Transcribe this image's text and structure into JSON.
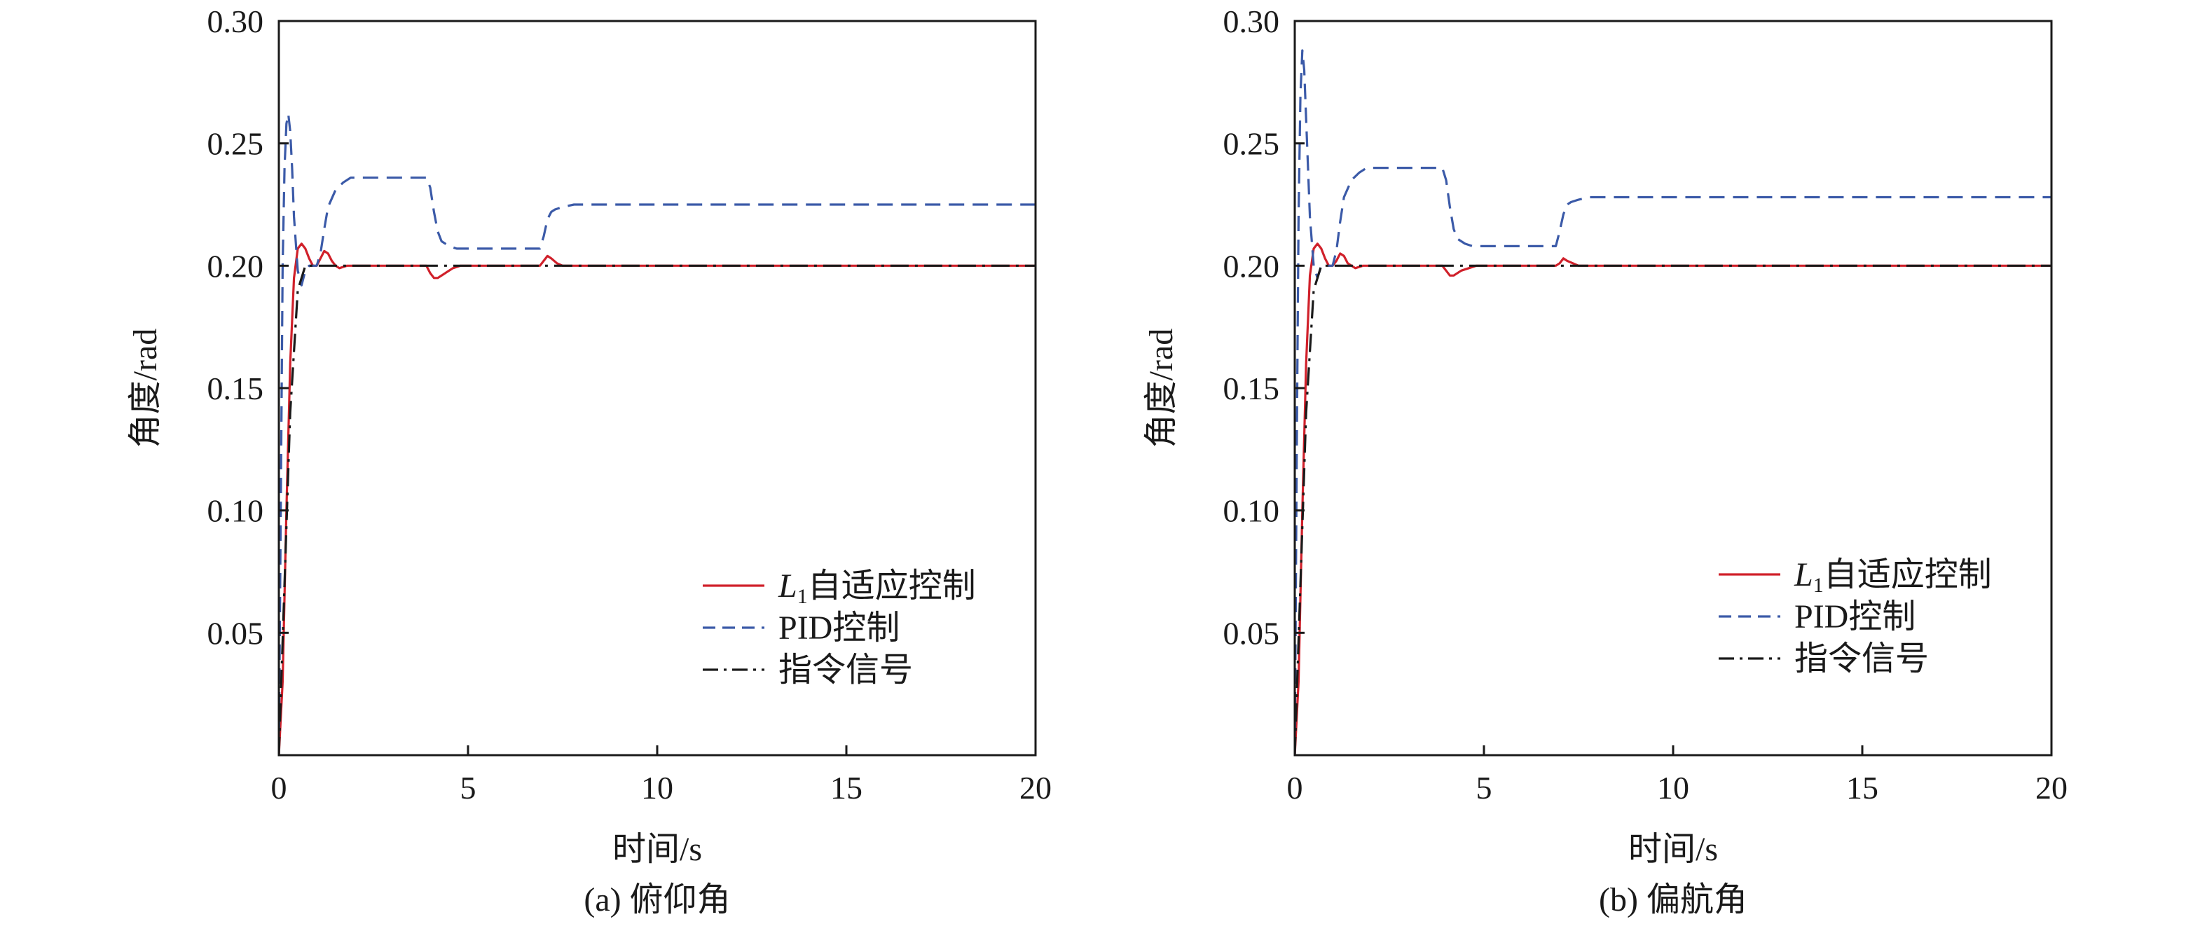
{
  "chart_data": [
    {
      "type": "line",
      "caption": "(a) 俯仰角",
      "xlabel": "时间/s",
      "ylabel": "角度/rad",
      "xlim": [
        0,
        20
      ],
      "ylim": [
        0,
        0.3
      ],
      "xticks": [
        "0",
        "5",
        "10",
        "15",
        "20"
      ],
      "yticks": [
        "0.05",
        "0.10",
        "0.15",
        "0.20",
        "0.25",
        "0.30"
      ],
      "legend": {
        "position": "lower-right"
      },
      "series": [
        {
          "name": "L1自适应控制",
          "name_main": "L",
          "name_sub": "1",
          "name_rest": "自适应控制",
          "color": "#d0202a",
          "dash": "solid",
          "x": [
            0,
            0.1,
            0.2,
            0.3,
            0.4,
            0.5,
            0.6,
            0.7,
            0.8,
            0.9,
            1.0,
            1.1,
            1.2,
            1.3,
            1.4,
            1.5,
            1.6,
            1.8,
            2.0,
            2.5,
            3.0,
            3.5,
            3.9,
            4.0,
            4.1,
            4.2,
            4.4,
            4.6,
            4.8,
            5.0,
            5.5,
            6.0,
            6.5,
            6.9,
            7.0,
            7.1,
            7.2,
            7.35,
            7.5,
            7.7,
            8.0,
            10,
            15,
            20
          ],
          "y": [
            0,
            0.03,
            0.1,
            0.16,
            0.195,
            0.207,
            0.209,
            0.207,
            0.203,
            0.2,
            0.2,
            0.203,
            0.206,
            0.205,
            0.202,
            0.2,
            0.199,
            0.2,
            0.2,
            0.2,
            0.2,
            0.2,
            0.2,
            0.197,
            0.195,
            0.195,
            0.197,
            0.199,
            0.2,
            0.2,
            0.2,
            0.2,
            0.2,
            0.2,
            0.202,
            0.204,
            0.203,
            0.201,
            0.2,
            0.2,
            0.2,
            0.2,
            0.2,
            0.2
          ]
        },
        {
          "name": "PID控制",
          "color": "#3b5aa8",
          "dash": "dashed",
          "x": [
            0,
            0.05,
            0.1,
            0.15,
            0.2,
            0.25,
            0.3,
            0.35,
            0.4,
            0.5,
            0.6,
            0.7,
            0.8,
            0.9,
            1.0,
            1.1,
            1.2,
            1.3,
            1.5,
            1.7,
            1.9,
            2.1,
            2.5,
            3.0,
            3.5,
            3.9,
            4.0,
            4.1,
            4.2,
            4.3,
            4.5,
            4.7,
            5.0,
            6.0,
            6.9,
            7.0,
            7.1,
            7.2,
            7.3,
            7.5,
            7.8,
            8.0,
            10,
            15,
            20
          ],
          "y": [
            0,
            0.1,
            0.2,
            0.24,
            0.258,
            0.262,
            0.255,
            0.24,
            0.22,
            0.198,
            0.192,
            0.198,
            0.2,
            0.2,
            0.2,
            0.205,
            0.215,
            0.224,
            0.231,
            0.234,
            0.236,
            0.236,
            0.236,
            0.236,
            0.236,
            0.236,
            0.232,
            0.222,
            0.214,
            0.21,
            0.208,
            0.207,
            0.207,
            0.207,
            0.207,
            0.212,
            0.219,
            0.222,
            0.223,
            0.224,
            0.225,
            0.225,
            0.225,
            0.225,
            0.225
          ]
        },
        {
          "name": "指令信号",
          "color": "#1a1a1a",
          "dash": "dashdot",
          "x": [
            0,
            0.3,
            0.5,
            0.7,
            1.0,
            20
          ],
          "y": [
            0,
            0.14,
            0.19,
            0.2,
            0.2,
            0.2
          ]
        }
      ]
    },
    {
      "type": "line",
      "caption": "(b) 偏航角",
      "xlabel": "时间/s",
      "ylabel": "角度/rad",
      "xlim": [
        0,
        20
      ],
      "ylim": [
        0,
        0.3
      ],
      "xticks": [
        "0",
        "5",
        "10",
        "15",
        "20"
      ],
      "yticks": [
        "0.05",
        "0.10",
        "0.15",
        "0.20",
        "0.25",
        "0.30"
      ],
      "legend": {
        "position": "lower-right"
      },
      "series": [
        {
          "name": "L1自适应控制",
          "name_main": "L",
          "name_sub": "1",
          "name_rest": "自适应控制",
          "color": "#d0202a",
          "dash": "solid",
          "x": [
            0,
            0.1,
            0.2,
            0.3,
            0.4,
            0.5,
            0.6,
            0.7,
            0.8,
            0.9,
            1.0,
            1.1,
            1.2,
            1.3,
            1.4,
            1.5,
            1.6,
            1.8,
            2.0,
            2.5,
            3.0,
            3.5,
            3.9,
            4.0,
            4.1,
            4.2,
            4.4,
            4.6,
            4.8,
            5.0,
            5.5,
            6.0,
            6.5,
            6.9,
            7.0,
            7.1,
            7.2,
            7.35,
            7.5,
            7.7,
            8.0,
            10,
            15,
            20
          ],
          "y": [
            0,
            0.03,
            0.1,
            0.16,
            0.196,
            0.207,
            0.209,
            0.207,
            0.203,
            0.2,
            0.2,
            0.202,
            0.205,
            0.204,
            0.201,
            0.2,
            0.199,
            0.2,
            0.2,
            0.2,
            0.2,
            0.2,
            0.2,
            0.198,
            0.196,
            0.196,
            0.198,
            0.199,
            0.2,
            0.2,
            0.2,
            0.2,
            0.2,
            0.2,
            0.201,
            0.203,
            0.202,
            0.201,
            0.2,
            0.2,
            0.2,
            0.2,
            0.2,
            0.2
          ]
        },
        {
          "name": "PID控制",
          "color": "#3b5aa8",
          "dash": "dashed",
          "x": [
            0,
            0.05,
            0.1,
            0.15,
            0.2,
            0.25,
            0.3,
            0.35,
            0.4,
            0.5,
            0.6,
            0.7,
            0.8,
            0.9,
            1.0,
            1.1,
            1.2,
            1.3,
            1.5,
            1.7,
            1.9,
            2.1,
            2.5,
            3.0,
            3.5,
            3.9,
            4.0,
            4.1,
            4.2,
            4.3,
            4.5,
            4.7,
            5.0,
            6.0,
            6.9,
            7.0,
            7.1,
            7.2,
            7.3,
            7.5,
            7.8,
            8.0,
            10,
            15,
            20
          ],
          "y": [
            0,
            0.12,
            0.22,
            0.27,
            0.288,
            0.28,
            0.26,
            0.24,
            0.22,
            0.2,
            0.195,
            0.2,
            0.2,
            0.2,
            0.2,
            0.206,
            0.218,
            0.228,
            0.235,
            0.238,
            0.24,
            0.24,
            0.24,
            0.24,
            0.24,
            0.24,
            0.235,
            0.224,
            0.215,
            0.211,
            0.209,
            0.208,
            0.208,
            0.208,
            0.208,
            0.214,
            0.221,
            0.225,
            0.226,
            0.227,
            0.228,
            0.228,
            0.228,
            0.228,
            0.228
          ]
        },
        {
          "name": "指令信号",
          "color": "#1a1a1a",
          "dash": "dashdot",
          "x": [
            0,
            0.3,
            0.5,
            0.7,
            1.0,
            20
          ],
          "y": [
            0,
            0.14,
            0.19,
            0.2,
            0.2,
            0.2
          ]
        }
      ]
    }
  ]
}
